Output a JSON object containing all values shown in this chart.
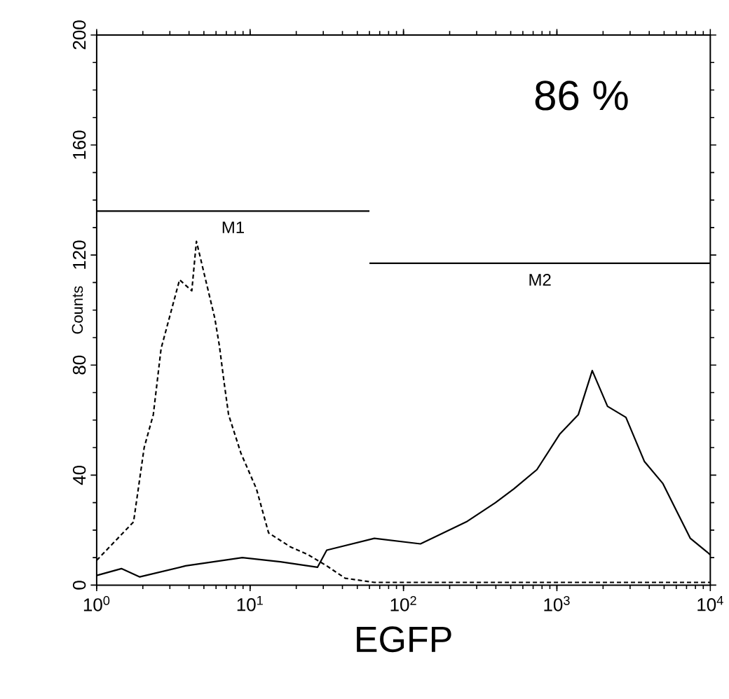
{
  "chart_data": {
    "type": "line",
    "xlabel": "EGFP",
    "ylabel": "Counts",
    "log": "x",
    "xlim": [
      1,
      10000
    ],
    "ylim": [
      0,
      200
    ],
    "xticks": [
      {
        "value": 1,
        "label": "10$^{0}$"
      },
      {
        "value": 10,
        "label": "10$^{1}$"
      },
      {
        "value": 100,
        "label": "10$^{2}$"
      },
      {
        "value": 1000,
        "label": "10$^{3}$"
      },
      {
        "value": 10000,
        "label": "10$^{4}$"
      }
    ],
    "yticks": [
      0,
      40,
      80,
      120,
      160,
      200
    ],
    "grid": false,
    "legend": false,
    "annotations": [
      "86 %"
    ],
    "series": [
      {
        "color": "#000000",
        "line_style": "dashed",
        "x": [
          1,
          1.74,
          2.04,
          2.34,
          2.63,
          3.47,
          4.17,
          4.47,
          5.89,
          6.31,
          6.76,
          7.24,
          8.71,
          11.0,
          13.2,
          18.2,
          24,
          31.6,
          41.7,
          64.6,
          200,
          1000,
          10000
        ],
        "values": [
          9,
          23,
          50,
          62,
          86,
          111,
          107,
          125,
          97,
          87,
          74,
          62,
          48,
          35,
          19,
          14,
          11,
          7,
          2.5,
          1,
          1,
          1,
          1
        ]
      },
      {
        "color": "#000000",
        "line_style": "solid",
        "x": [
          1,
          1.45,
          1.91,
          3.8,
          8.9,
          15.8,
          27.5,
          31.6,
          64.6,
          129,
          257,
          398,
          525,
          741,
          1047,
          1380,
          1700,
          2138,
          2818,
          3715,
          4898,
          6026,
          7413,
          9550,
          10000
        ],
        "values": [
          3.5,
          6,
          3,
          7,
          10,
          8.5,
          6.5,
          12.7,
          17,
          15,
          23,
          30,
          35,
          42,
          55,
          62,
          78,
          65,
          61,
          45,
          37,
          27,
          17,
          12,
          11
        ]
      },
      {
        "name": "M1",
        "color": "#000000",
        "line_style": "solid",
        "x": [
          1,
          60
        ],
        "values": [
          136,
          136
        ]
      },
      {
        "name": "M2",
        "color": "#000000",
        "line_style": "solid",
        "x": [
          60,
          10000
        ],
        "values": [
          117,
          117
        ]
      }
    ]
  }
}
